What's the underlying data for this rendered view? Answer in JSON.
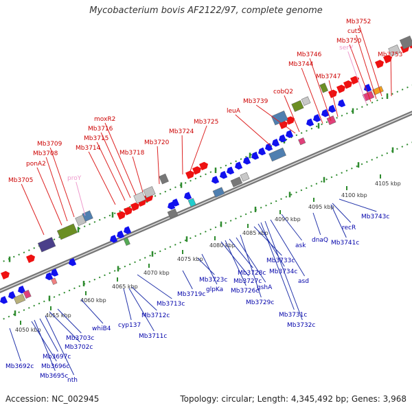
{
  "title": "Mycobacterium bovis AF2122/97, complete genome",
  "accession": "Accession: NC_002945",
  "stats": "Topology: circular; Length: 4,345,492 bp; Genes: 3,968",
  "colors": {
    "forward_label": "#cc0000",
    "reverse_label": "#0000aa",
    "rna_label": "#ee99cc",
    "forward_feature": "#ee1111",
    "reverse_feature": "#1111ee",
    "leader_forward": "#dd2222",
    "leader_reverse": "#2233aa",
    "tick": "#2e8b2e"
  },
  "kbp_ticks": [
    "4050 kbp",
    "4055 kbp",
    "4060 kbp",
    "4065 kbp",
    "4070 kbp",
    "4075 kbp",
    "4080 kbp",
    "4085 kbp",
    "4090 kbp",
    "4095 kbp",
    "4100 kbp",
    "4105 kbp"
  ],
  "forward_genes": [
    "Mb3705",
    "ponA2",
    "Mb3708",
    "Mb3709",
    "proY",
    "Mb3714",
    "Mb3715",
    "Mb3716",
    "moxR2",
    "Mb3718",
    "Mb3720",
    "Mb3724",
    "Mb3725",
    "leuA",
    "Mb3739",
    "cobQ2",
    "Mb3744",
    "Mb3746",
    "Mb3747",
    "serV",
    "Mb3750",
    "cut5",
    "Mb3752",
    "Mb3753"
  ],
  "reverse_genes": [
    "Mb3692c",
    "Mb3696c",
    "Mb3695c",
    "Mb3697c",
    "nth",
    "Mb3702c",
    "Mb3703c",
    "whiB4",
    "cyp137",
    "Mb3711c",
    "Mb3712c",
    "Mb3713c",
    "Mb3719c",
    "Mb3723c",
    "glpKa",
    "Mb3727c",
    "Mb3726c",
    "Mb3728c",
    "gshA",
    "Mb3729c",
    "Mb3731c",
    "Mb3732c",
    "Mb3733c",
    "Mb3734c",
    "asd",
    "ask",
    "dnaQ",
    "Mb3741c",
    "recR",
    "Mb3743c"
  ],
  "rna_genes": [
    "proY",
    "serV"
  ]
}
